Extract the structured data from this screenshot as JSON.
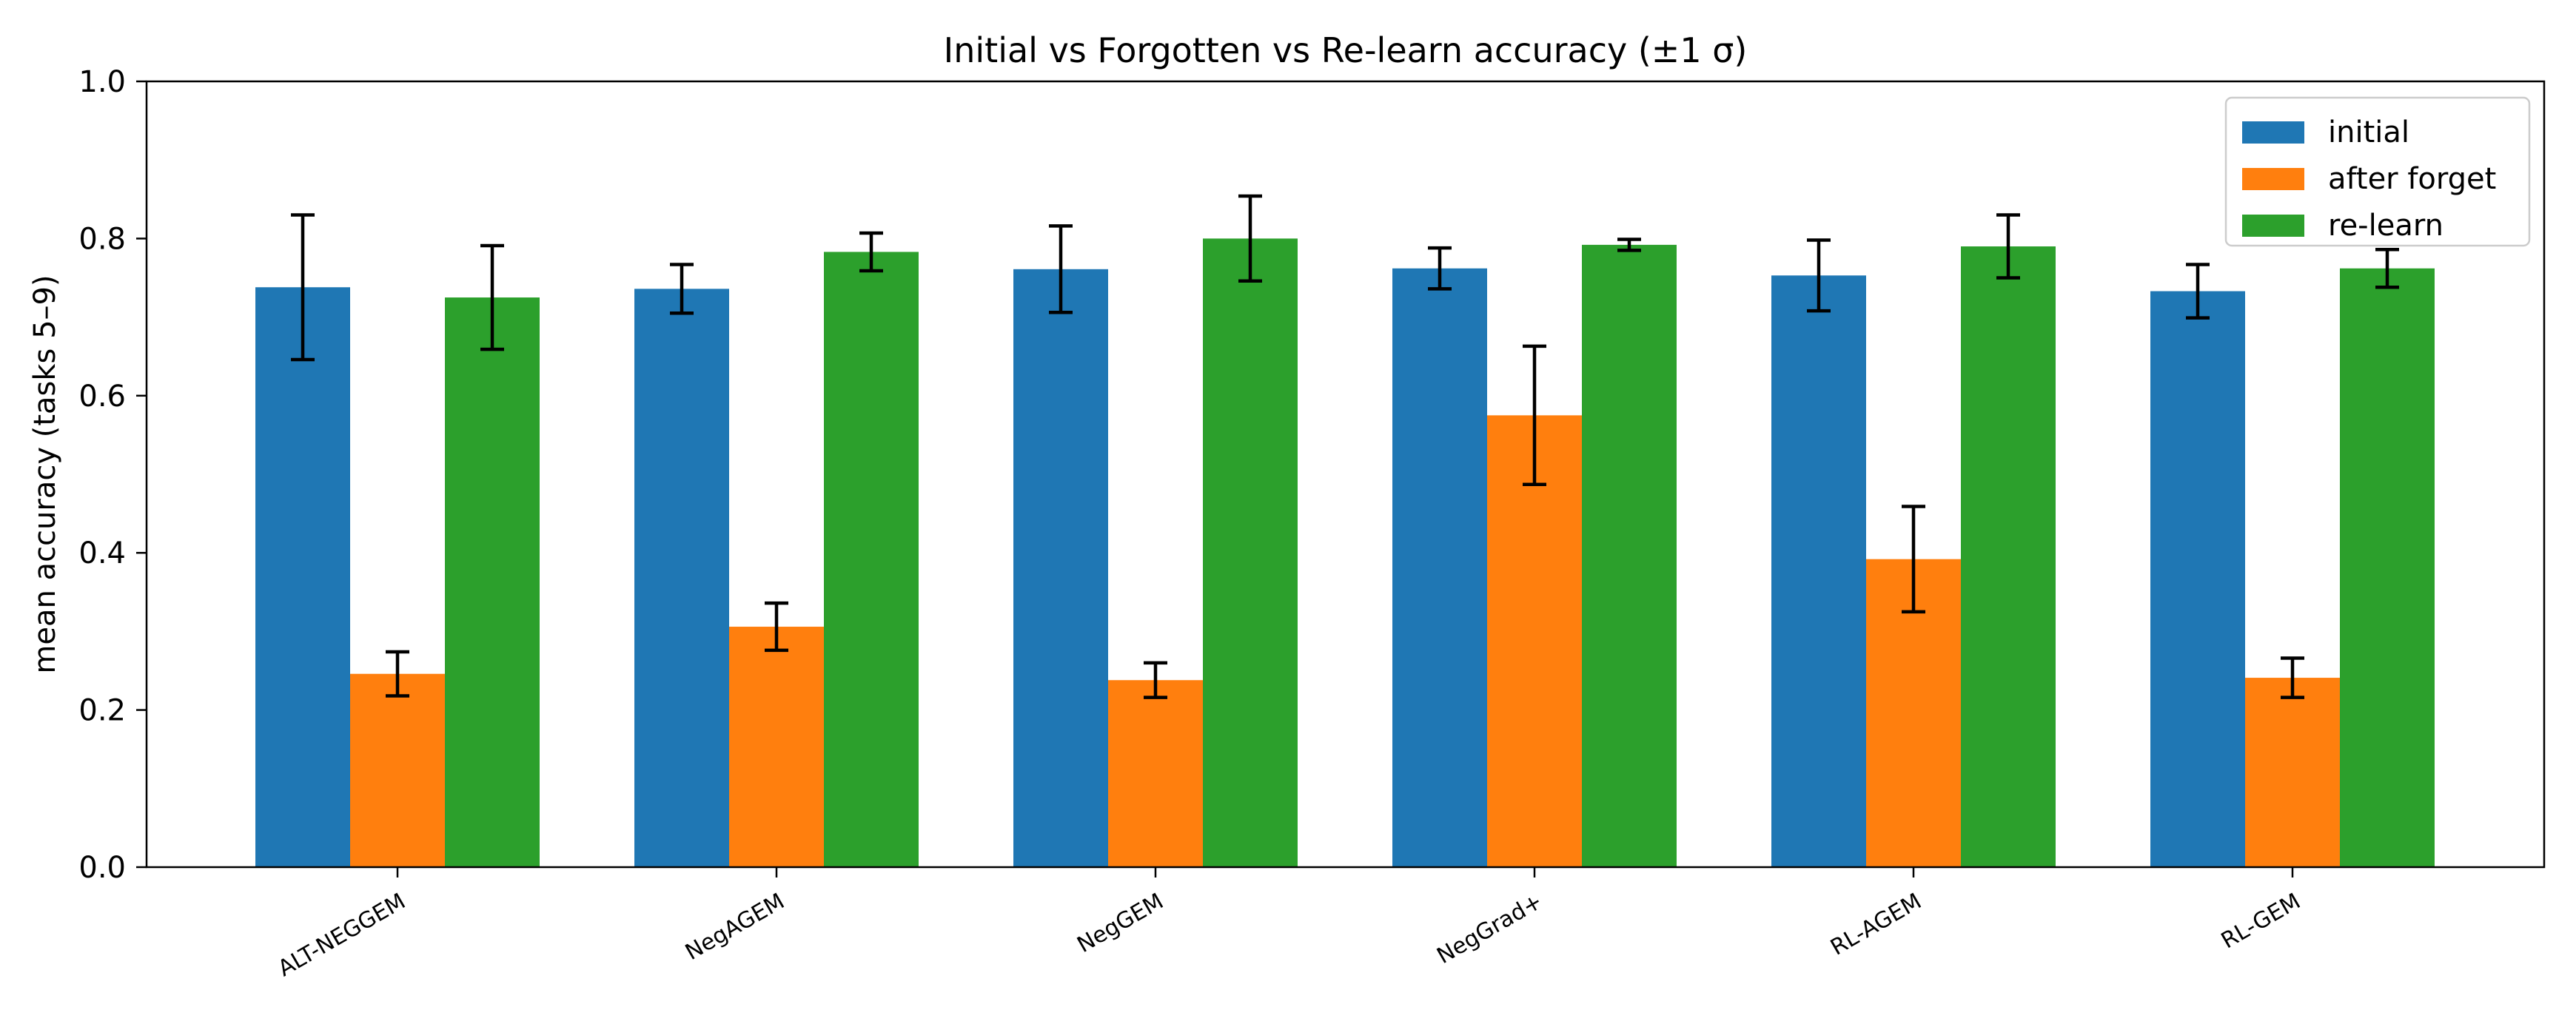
{
  "chart_data": {
    "type": "bar",
    "title": "Initial vs Forgotten vs Re-learn accuracy (±1 σ)",
    "xlabel": "",
    "ylabel": "mean accuracy  (tasks 5–9)",
    "ylim": [
      0,
      1.0
    ],
    "yticks": [
      "0.0",
      "0.2",
      "0.4",
      "0.6",
      "0.8",
      "1.0"
    ],
    "grid": false,
    "legend_position": "top-right",
    "categories": [
      "ALT-NEGGEM",
      "NegAGEM",
      "NegGEM",
      "NegGrad+",
      "RL-AGEM",
      "RL-GEM"
    ],
    "series": [
      {
        "name": "initial",
        "color": "#1f77b4",
        "values": [
          0.738,
          0.736,
          0.761,
          0.762,
          0.753,
          0.733
        ],
        "errors": [
          0.092,
          0.031,
          0.055,
          0.026,
          0.045,
          0.034
        ]
      },
      {
        "name": "after forget",
        "color": "#ff7f0e",
        "values": [
          0.246,
          0.306,
          0.238,
          0.575,
          0.392,
          0.241
        ],
        "errors": [
          0.028,
          0.03,
          0.022,
          0.088,
          0.067,
          0.025
        ]
      },
      {
        "name": "re-learn",
        "color": "#2ca02c",
        "values": [
          0.725,
          0.783,
          0.8,
          0.792,
          0.79,
          0.762
        ],
        "errors": [
          0.066,
          0.024,
          0.054,
          0.007,
          0.04,
          0.024
        ]
      }
    ]
  }
}
